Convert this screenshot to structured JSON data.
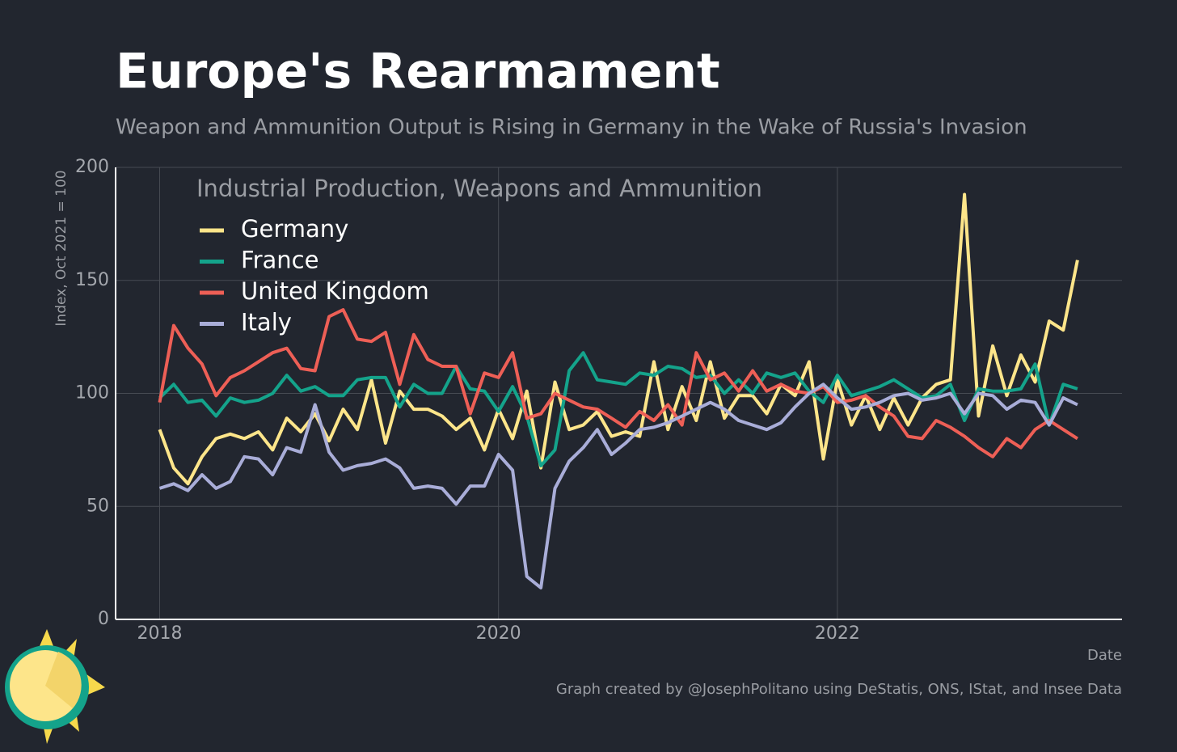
{
  "chart_data": {
    "type": "line",
    "title": "Europe's Rearmament",
    "subtitle": "Weapon and Ammunition Output is Rising in Germany in the Wake of Russia's Invasion",
    "legend_title": "Industrial Production, Weapons and Ammunition",
    "y_label": "Index, Oct 2021 = 100",
    "x_label": "Date",
    "caption": "Graph created by @JosephPolitano using DeStatis, ONS, IStat, and Insee Data",
    "legend": "top-left",
    "grid": true,
    "xlim": [
      2017.74,
      2023.68
    ],
    "xticks": [
      2018,
      2020,
      2022
    ],
    "ylim": [
      0,
      200
    ],
    "yticks": [
      0,
      50,
      100,
      150,
      200
    ],
    "x": [
      2018,
      2018.083,
      2018.167,
      2018.25,
      2018.333,
      2018.417,
      2018.5,
      2018.583,
      2018.667,
      2018.75,
      2018.833,
      2018.917,
      2019,
      2019.083,
      2019.167,
      2019.25,
      2019.333,
      2019.417,
      2019.5,
      2019.583,
      2019.667,
      2019.75,
      2019.833,
      2019.917,
      2020,
      2020.083,
      2020.167,
      2020.25,
      2020.333,
      2020.417,
      2020.5,
      2020.583,
      2020.667,
      2020.75,
      2020.833,
      2020.917,
      2021,
      2021.083,
      2021.167,
      2021.25,
      2021.333,
      2021.417,
      2021.5,
      2021.583,
      2021.667,
      2021.75,
      2021.833,
      2021.917,
      2022,
      2022.083,
      2022.167,
      2022.25,
      2022.333,
      2022.417,
      2022.5,
      2022.583,
      2022.667,
      2022.75,
      2022.833,
      2022.917,
      2023,
      2023.083,
      2023.167,
      2023.25,
      2023.333,
      2023.417
    ],
    "series": [
      {
        "name": "Germany",
        "color": "#fde58a",
        "values": [
          84,
          67,
          60,
          72,
          80,
          82,
          80,
          83,
          75,
          89,
          83,
          91,
          79,
          93,
          84,
          106,
          78,
          101,
          93,
          93,
          90,
          84,
          89,
          75,
          93,
          80,
          101,
          67,
          105,
          84,
          86,
          92,
          81,
          83,
          81,
          114,
          84,
          103,
          88,
          114,
          89,
          99,
          99,
          91,
          104,
          99,
          114,
          71,
          106,
          86,
          99,
          84,
          98,
          86,
          98,
          104,
          106,
          188,
          90,
          121,
          99,
          117,
          105,
          132,
          128,
          159
        ]
      },
      {
        "name": "France",
        "color": "#14a38b",
        "values": [
          98,
          104,
          96,
          97,
          90,
          98,
          96,
          97,
          100,
          108,
          101,
          103,
          99,
          99,
          106,
          107,
          107,
          94,
          104,
          100,
          100,
          112,
          102,
          101,
          92,
          103,
          90,
          68,
          75,
          110,
          118,
          106,
          105,
          104,
          109,
          108,
          112,
          111,
          107,
          108,
          100,
          106,
          100,
          109,
          107,
          109,
          101,
          96,
          108,
          99,
          101,
          103,
          106,
          102,
          98,
          99,
          104,
          88,
          102,
          101,
          101,
          102,
          113,
          86,
          104,
          102
        ]
      },
      {
        "name": "United Kingdom",
        "color": "#ee5f56",
        "values": [
          96,
          130,
          120,
          113,
          99,
          107,
          110,
          114,
          118,
          120,
          111,
          110,
          134,
          137,
          124,
          123,
          127,
          104,
          126,
          115,
          112,
          112,
          91,
          109,
          107,
          118,
          89,
          91,
          100,
          97,
          94,
          93,
          89,
          85,
          92,
          88,
          95,
          86,
          118,
          106,
          109,
          101,
          110,
          101,
          104,
          101,
          100,
          103,
          96,
          97,
          99,
          94,
          90,
          81,
          80,
          88,
          85,
          81,
          76,
          72,
          80,
          76,
          84,
          88,
          84,
          80
        ]
      },
      {
        "name": "Italy",
        "color": "#a9add8",
        "values": [
          58,
          60,
          57,
          64,
          58,
          61,
          72,
          71,
          64,
          76,
          74,
          95,
          74,
          66,
          68,
          69,
          71,
          67,
          58,
          59,
          58,
          51,
          59,
          59,
          73,
          66,
          19,
          14,
          58,
          70,
          76,
          84,
          73,
          78,
          84,
          85,
          87,
          90,
          93,
          96,
          93,
          88,
          86,
          84,
          87,
          94,
          100,
          104,
          98,
          93,
          94,
          96,
          99,
          100,
          97,
          98,
          100,
          91,
          100,
          99,
          93,
          97,
          96,
          86,
          98,
          95
        ]
      }
    ]
  }
}
